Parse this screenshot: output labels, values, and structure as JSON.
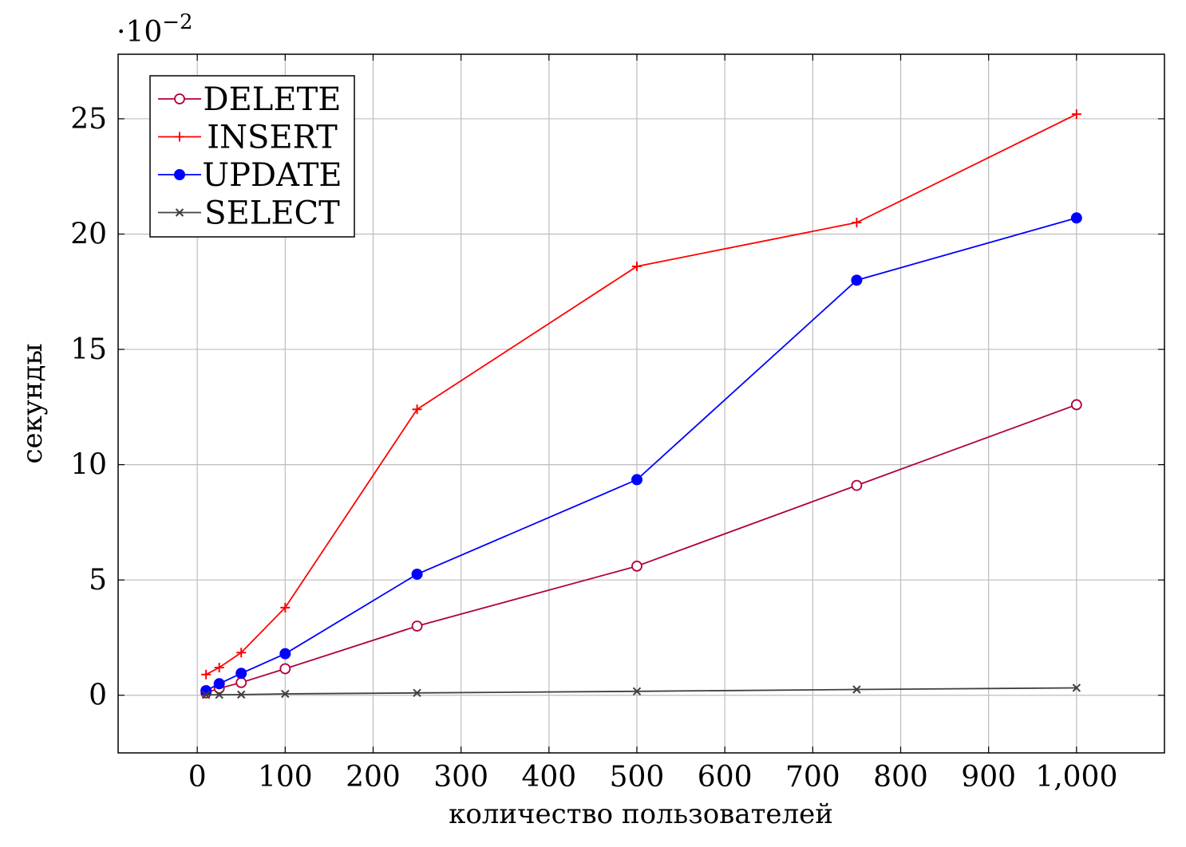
{
  "chart_data": {
    "type": "line",
    "title": "",
    "xlabel": "количество пользователей",
    "ylabel": "секунды",
    "y_scale_note": "·10",
    "y_scale_exponent": "−2",
    "x": [
      10,
      25,
      50,
      100,
      250,
      500,
      750,
      1000
    ],
    "xlim": [
      -90,
      1100
    ],
    "ylim": [
      -2.5,
      27.8
    ],
    "x_ticks": [
      0,
      100,
      200,
      300,
      400,
      500,
      600,
      700,
      800,
      900,
      1000
    ],
    "x_tick_labels": [
      "0",
      "100",
      "200",
      "300",
      "400",
      "500",
      "600",
      "700",
      "800",
      "900",
      "1,000"
    ],
    "y_ticks": [
      0,
      5,
      10,
      15,
      20,
      25
    ],
    "y_tick_labels": [
      "0",
      "5",
      "10",
      "15",
      "20",
      "25"
    ],
    "grid": true,
    "legend_position": "top-left",
    "series": [
      {
        "name": "DELETE",
        "color": "#b0003a",
        "marker": "open-circle",
        "values": [
          0.1,
          0.3,
          0.55,
          1.15,
          3.0,
          5.6,
          9.1,
          12.6
        ]
      },
      {
        "name": "INSERT",
        "color": "#ff0000",
        "marker": "plus",
        "values": [
          0.9,
          1.2,
          1.85,
          3.8,
          12.4,
          18.6,
          20.5,
          25.2
        ]
      },
      {
        "name": "UPDATE",
        "color": "#0000ff",
        "marker": "filled-circle",
        "values": [
          0.2,
          0.5,
          0.95,
          1.8,
          5.25,
          9.35,
          18.0,
          20.7
        ]
      },
      {
        "name": "SELECT",
        "color": "#404040",
        "marker": "cross",
        "values": [
          0.02,
          0.02,
          0.03,
          0.06,
          0.1,
          0.17,
          0.25,
          0.32
        ]
      }
    ]
  }
}
